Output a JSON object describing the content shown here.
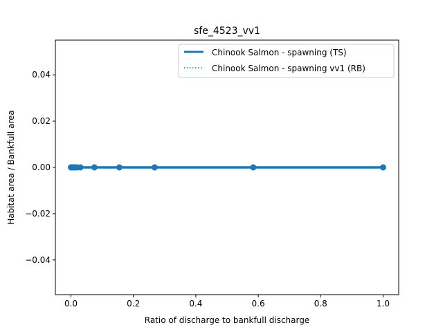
{
  "chart_data": {
    "type": "line",
    "title": "sfe_4523_vv1",
    "xlabel": "Ratio of discharge to bankfull discharge",
    "ylabel": "Habitat area / Bankfull area",
    "xlim": [
      -0.05,
      1.05
    ],
    "ylim": [
      -0.055,
      0.055
    ],
    "xticks": [
      0.0,
      0.2,
      0.4,
      0.6,
      0.8,
      1.0
    ],
    "xtick_labels": [
      "0.0",
      "0.2",
      "0.4",
      "0.6",
      "0.8",
      "1.0"
    ],
    "yticks": [
      -0.04,
      -0.02,
      0.0,
      0.02,
      0.04
    ],
    "ytick_labels": [
      "−0.04",
      "−0.02",
      "0.00",
      "0.02",
      "0.04"
    ],
    "grid": false,
    "legend_position": "top-right",
    "series": [
      {
        "name": "Chinook Salmon - spawning (TS)",
        "style": "solid",
        "markers": true,
        "color": "#1f77b4",
        "x": [
          0.0,
          0.001,
          0.002,
          0.004,
          0.006,
          0.01,
          0.015,
          0.02,
          0.03,
          0.075,
          0.155,
          0.268,
          0.584,
          1.0
        ],
        "y": [
          0,
          0,
          0,
          0,
          0,
          0,
          0,
          0,
          0,
          0,
          0,
          0,
          0,
          0
        ]
      },
      {
        "name": "Chinook Salmon - spawning vv1 (RB)",
        "style": "dotted",
        "markers": false,
        "color": "#1f77b4",
        "x": [
          0.0,
          0.001,
          0.002,
          0.004,
          0.006,
          0.01,
          0.015,
          0.02,
          0.03,
          0.075,
          0.155,
          0.268,
          0.584,
          1.0
        ],
        "y": [
          0,
          0,
          0,
          0,
          0,
          0,
          0,
          0,
          0,
          0,
          0,
          0,
          0,
          0
        ]
      }
    ]
  }
}
